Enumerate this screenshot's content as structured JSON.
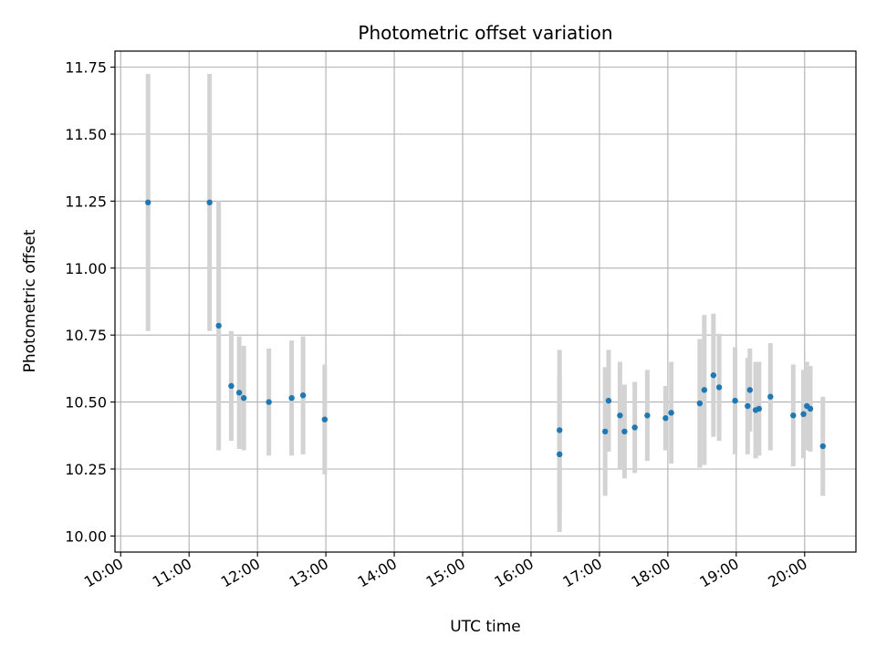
{
  "chart_data": {
    "type": "scatter",
    "title": "Photometric offset variation",
    "xlabel": "UTC time",
    "ylabel": "Photometric offset",
    "xlim": [
      "09:55",
      "20:45"
    ],
    "ylim": [
      9.94,
      11.81
    ],
    "grid": true,
    "x_ticks": [
      "10:00",
      "11:00",
      "12:00",
      "13:00",
      "14:00",
      "15:00",
      "16:00",
      "17:00",
      "18:00",
      "19:00",
      "20:00"
    ],
    "y_ticks": [
      "10.00",
      "10.25",
      "10.50",
      "10.75",
      "11.00",
      "11.25",
      "11.50",
      "11.75"
    ],
    "colors": {
      "marker": "#1f77b4",
      "errorbar": "#d3d3d3",
      "grid": "#b0b0b0"
    },
    "points": [
      {
        "time": "10:24",
        "y": 11.245,
        "err": 0.48
      },
      {
        "time": "11:18",
        "y": 11.245,
        "err": 0.48
      },
      {
        "time": "11:26",
        "y": 10.785,
        "err": 0.465
      },
      {
        "time": "11:37",
        "y": 10.56,
        "err": 0.205
      },
      {
        "time": "11:44",
        "y": 10.535,
        "err": 0.21
      },
      {
        "time": "11:48",
        "y": 10.515,
        "err": 0.195
      },
      {
        "time": "12:10",
        "y": 10.5,
        "err": 0.2
      },
      {
        "time": "12:30",
        "y": 10.515,
        "err": 0.215
      },
      {
        "time": "12:40",
        "y": 10.525,
        "err": 0.22
      },
      {
        "time": "12:59",
        "y": 10.435,
        "err": 0.205
      },
      {
        "time": "16:25",
        "y": 10.395,
        "err": 0.3
      },
      {
        "time": "16:25",
        "y": 10.305,
        "err": 0.29
      },
      {
        "time": "17:05",
        "y": 10.39,
        "err": 0.24
      },
      {
        "time": "17:08",
        "y": 10.505,
        "err": 0.19
      },
      {
        "time": "17:18",
        "y": 10.45,
        "err": 0.2
      },
      {
        "time": "17:22",
        "y": 10.39,
        "err": 0.175
      },
      {
        "time": "17:31",
        "y": 10.405,
        "err": 0.17
      },
      {
        "time": "17:42",
        "y": 10.45,
        "err": 0.17
      },
      {
        "time": "17:58",
        "y": 10.44,
        "err": 0.12
      },
      {
        "time": "18:03",
        "y": 10.46,
        "err": 0.19
      },
      {
        "time": "18:28",
        "y": 10.495,
        "err": 0.24
      },
      {
        "time": "18:32",
        "y": 10.545,
        "err": 0.28
      },
      {
        "time": "18:40",
        "y": 10.6,
        "err": 0.23
      },
      {
        "time": "18:45",
        "y": 10.555,
        "err": 0.2
      },
      {
        "time": "18:59",
        "y": 10.505,
        "err": 0.2
      },
      {
        "time": "19:10",
        "y": 10.485,
        "err": 0.18
      },
      {
        "time": "19:12",
        "y": 10.545,
        "err": 0.155
      },
      {
        "time": "19:17",
        "y": 10.47,
        "err": 0.18
      },
      {
        "time": "19:20",
        "y": 10.475,
        "err": 0.175
      },
      {
        "time": "19:30",
        "y": 10.52,
        "err": 0.2
      },
      {
        "time": "19:50",
        "y": 10.45,
        "err": 0.19
      },
      {
        "time": "19:59",
        "y": 10.455,
        "err": 0.165
      },
      {
        "time": "20:02",
        "y": 10.485,
        "err": 0.165
      },
      {
        "time": "20:05",
        "y": 10.475,
        "err": 0.16
      },
      {
        "time": "20:16",
        "y": 10.335,
        "err": 0.185
      }
    ]
  }
}
